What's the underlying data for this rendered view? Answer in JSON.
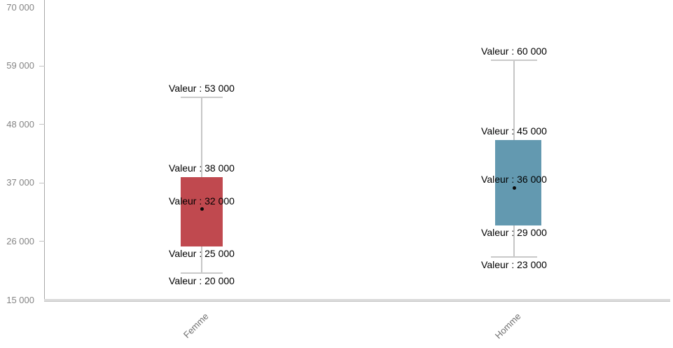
{
  "chart_data": {
    "type": "boxplot",
    "title": "",
    "xlabel": "",
    "ylabel": "",
    "grid": "off",
    "legend": "none",
    "categories": [
      "Femme",
      "Homme"
    ],
    "y_axis": {
      "min": 15000,
      "max": 70000,
      "tick_values": [
        70000,
        59000,
        48000,
        37000,
        26000,
        15000
      ],
      "tick_labels": [
        "70 000",
        "59 000",
        "48 000",
        "37 000",
        "26 000",
        "15 000"
      ]
    },
    "series": [
      {
        "name": "Femme",
        "color": "#c0494f",
        "min": 20000,
        "q1": 25000,
        "mean": 32000,
        "q3": 38000,
        "max": 53000,
        "labels": {
          "max": "Valeur : 53 000",
          "q3": "Valeur : 38 000",
          "mean": "Valeur : 32 000",
          "q1": "Valeur : 25 000",
          "min": "Valeur : 20 000"
        }
      },
      {
        "name": "Homme",
        "color": "#6399b0",
        "min": 23000,
        "q1": 29000,
        "mean": 36000,
        "q3": 45000,
        "max": 60000,
        "labels": {
          "max": "Valeur : 60 000",
          "q3": "Valeur : 45 000",
          "mean": "Valeur : 36 000",
          "q1": "Valeur : 29 000",
          "min": "Valeur : 23 000"
        }
      }
    ]
  },
  "colors": {
    "femme_box": "#c0494f",
    "homme_box": "#6399b0",
    "axis_line": "#a8a8a8",
    "whisker": "#c6c6c6",
    "tick_text": "#848484",
    "category_text": "#6e6e6e",
    "value_text": "#000000",
    "mean_dot": "#0a0a0a"
  }
}
